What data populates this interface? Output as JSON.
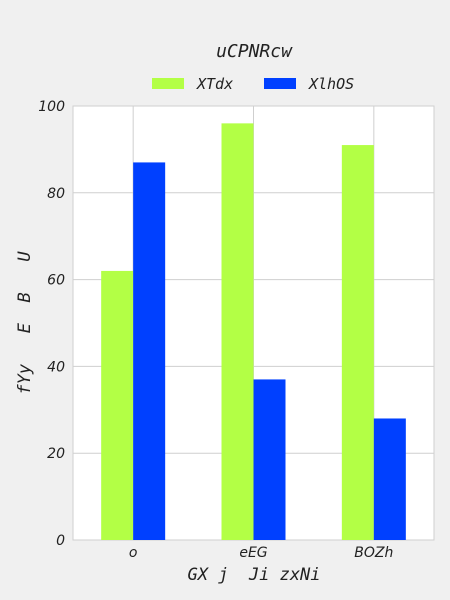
{
  "chart_data": {
    "type": "bar",
    "title": "uCPNRcw",
    "xlabel": "GX j  Ji zxNi",
    "ylabel": "fYy   E  B   U",
    "categories": [
      "o",
      "eEG",
      "BOZh"
    ],
    "series": [
      {
        "name": "XTdx",
        "values": [
          62,
          96,
          91
        ],
        "color": "#b3ff45"
      },
      {
        "name": "XlhOS",
        "values": [
          87,
          37,
          28
        ],
        "color": "#0040ff"
      }
    ],
    "ylim": [
      0,
      100
    ],
    "yticks": [
      0,
      20,
      40,
      60,
      80,
      100
    ],
    "grid": true,
    "legend_position": "top"
  }
}
